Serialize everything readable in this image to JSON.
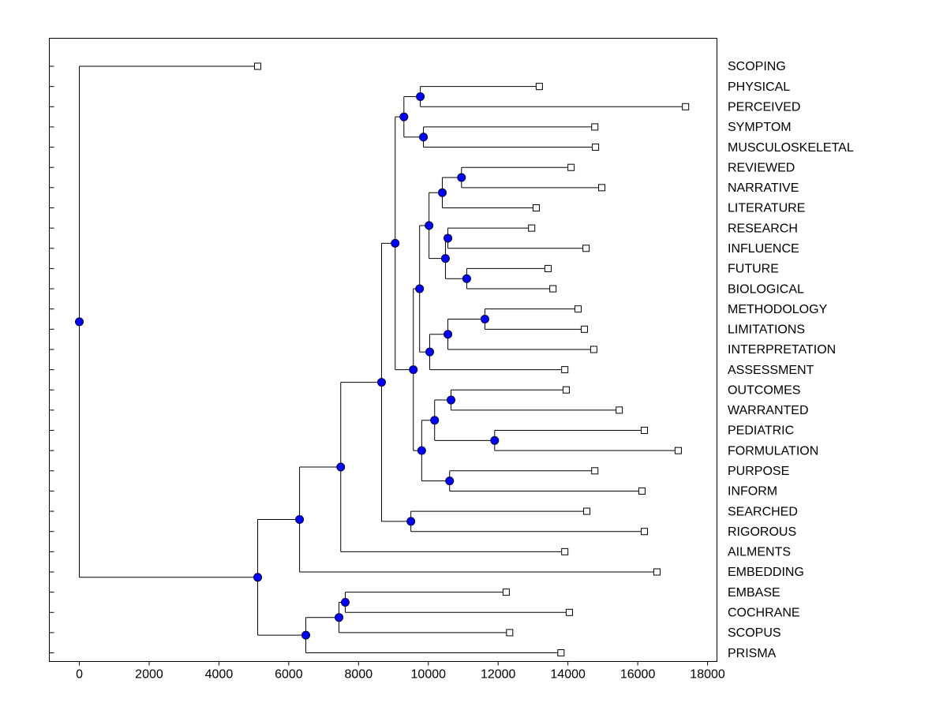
{
  "chart_data": {
    "type": "dendrogram",
    "xlim": [
      -860,
      18270
    ],
    "xticks": [
      0,
      2000,
      4000,
      6000,
      8000,
      10000,
      12000,
      14000,
      16000,
      18000
    ],
    "node_color": "#0000ff",
    "tree": {
      "value": 0,
      "children": [
        {
          "label": "SCOPING",
          "value": 5110
        },
        {
          "value": 5110,
          "children": [
            {
              "value": 6310,
              "children": [
                {
                  "value": 7490,
                  "children": [
                    {
                      "value": 8660,
                      "children": [
                        {
                          "value": 9050,
                          "children": [
                            {
                              "value": 9300,
                              "children": [
                                {
                                  "value": 9770,
                                  "children": [
                                    {
                                      "label": "PHYSICAL",
                                      "value": 13180
                                    },
                                    {
                                      "label": "PERCEIVED",
                                      "value": 17370
                                    }
                                  ]
                                },
                                {
                                  "value": 9860,
                                  "children": [
                                    {
                                      "label": "SYMPTOM",
                                      "value": 14770
                                    },
                                    {
                                      "label": "MUSCULOSKELETAL",
                                      "value": 14790
                                    }
                                  ]
                                }
                              ]
                            },
                            {
                              "value": 9570,
                              "children": [
                                {
                                  "value": 9750,
                                  "children": [
                                    {
                                      "value": 10020,
                                      "children": [
                                        {
                                          "value": 10400,
                                          "children": [
                                            {
                                              "value": 10950,
                                              "children": [
                                                {
                                                  "label": "REVIEWED",
                                                  "value": 14090
                                                },
                                                {
                                                  "label": "NARRATIVE",
                                                  "value": 14970
                                                }
                                              ]
                                            },
                                            {
                                              "label": "LITERATURE",
                                              "value": 13090
                                            }
                                          ]
                                        },
                                        {
                                          "value": 10490,
                                          "children": [
                                            {
                                              "value": 10560,
                                              "children": [
                                                {
                                                  "label": "RESEARCH",
                                                  "value": 12960
                                                },
                                                {
                                                  "label": "INFLUENCE",
                                                  "value": 14520
                                                }
                                              ]
                                            },
                                            {
                                              "value": 11100,
                                              "children": [
                                                {
                                                  "label": "FUTURE",
                                                  "value": 13430
                                                },
                                                {
                                                  "label": "BIOLOGICAL",
                                                  "value": 13570
                                                }
                                              ]
                                            }
                                          ]
                                        }
                                      ]
                                    },
                                    {
                                      "value": 10040,
                                      "children": [
                                        {
                                          "value": 10560,
                                          "children": [
                                            {
                                              "value": 11620,
                                              "children": [
                                                {
                                                  "label": "METHODOLOGY",
                                                  "value": 14290
                                                },
                                                {
                                                  "label": "LIMITATIONS",
                                                  "value": 14470
                                                }
                                              ]
                                            },
                                            {
                                              "label": "INTERPRETATION",
                                              "value": 14740
                                            }
                                          ]
                                        },
                                        {
                                          "label": "ASSESSMENT",
                                          "value": 13910
                                        }
                                      ]
                                    }
                                  ]
                                },
                                {
                                  "value": 9810,
                                  "children": [
                                    {
                                      "value": 10180,
                                      "children": [
                                        {
                                          "value": 10650,
                                          "children": [
                                            {
                                              "label": "OUTCOMES",
                                              "value": 13950
                                            },
                                            {
                                              "label": "WARRANTED",
                                              "value": 15470
                                            }
                                          ]
                                        },
                                        {
                                          "value": 11900,
                                          "children": [
                                            {
                                              "label": "PEDIATRIC",
                                              "value": 16190
                                            },
                                            {
                                              "label": "FORMULATION",
                                              "value": 17160
                                            }
                                          ]
                                        }
                                      ]
                                    },
                                    {
                                      "value": 10610,
                                      "children": [
                                        {
                                          "label": "PURPOSE",
                                          "value": 14770
                                        },
                                        {
                                          "label": "INFORM",
                                          "value": 16120
                                        }
                                      ]
                                    }
                                  ]
                                }
                              ]
                            }
                          ]
                        },
                        {
                          "value": 9500,
                          "children": [
                            {
                              "label": "SEARCHED",
                              "value": 14540
                            },
                            {
                              "label": "RIGOROUS",
                              "value": 16190
                            }
                          ]
                        }
                      ]
                    },
                    {
                      "label": "AILMENTS",
                      "value": 13910
                    }
                  ]
                },
                {
                  "label": "EMBEDDING",
                  "value": 16550
                }
              ]
            },
            {
              "value": 6490,
              "children": [
                {
                  "value": 7440,
                  "children": [
                    {
                      "value": 7620,
                      "children": [
                        {
                          "label": "EMBASE",
                          "value": 12230
                        },
                        {
                          "label": "COCHRANE",
                          "value": 14040
                        }
                      ]
                    },
                    {
                      "label": "SCOPUS",
                      "value": 12330
                    }
                  ]
                },
                {
                  "label": "PRISMA",
                  "value": 13800
                }
              ]
            }
          ]
        }
      ]
    }
  }
}
